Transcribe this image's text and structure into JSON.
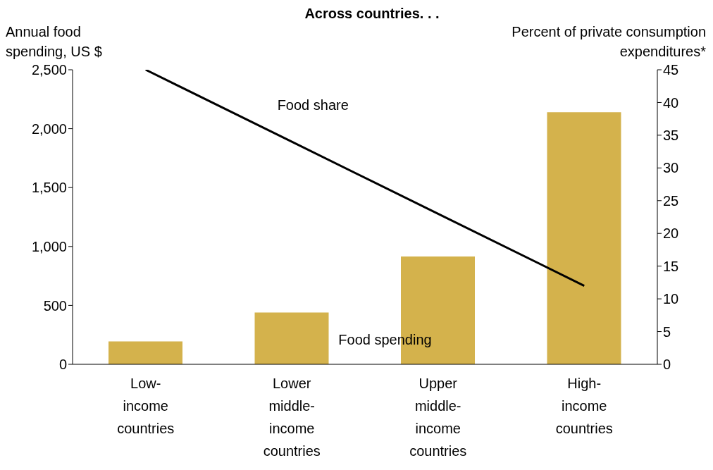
{
  "chart_data": {
    "type": "bar",
    "title": "Across countries. . .",
    "ylabel": "Annual food spending, US $",
    "y2label": "Percent of private consumption expenditures*",
    "categories": [
      "Low-income countries",
      "Lower middle-income countries",
      "Upper middle-income countries",
      "High-income countries"
    ],
    "series": [
      {
        "name": "Food spending",
        "color": "#d4b24c",
        "values": [
          195,
          440,
          915,
          2140
        ]
      },
      {
        "name": "Food share",
        "type": "line",
        "axis": "y2",
        "color": "#000000",
        "values": [
          45,
          34,
          23,
          12
        ]
      }
    ],
    "ylim": [
      0,
      2500
    ],
    "yticks": [
      0,
      {
        "value": 500,
        "label": "500"
      },
      {
        "value": 1000,
        "label": "1,000"
      },
      {
        "value": 1500,
        "label": "1,500"
      },
      {
        "value": 2000,
        "label": "2,000"
      },
      {
        "value": 2500,
        "label": "2,500"
      }
    ],
    "y2lim": [
      0,
      45
    ],
    "y2ticks": [
      0,
      5,
      10,
      15,
      20,
      25,
      30,
      35,
      40,
      45
    ]
  }
}
